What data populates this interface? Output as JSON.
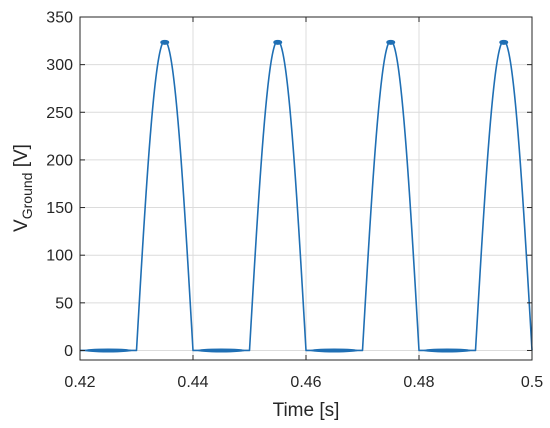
{
  "chart_data": {
    "type": "line",
    "title": "",
    "xlabel": "Time [s]",
    "ylabel_main": "V",
    "ylabel_sub": "Ground",
    "ylabel_unit": " [V]",
    "xlim": [
      0.42,
      0.5
    ],
    "ylim": [
      -10,
      350
    ],
    "xticks": [
      0.42,
      0.44,
      0.46,
      0.48,
      0.5
    ],
    "xtick_labels": [
      "0.42",
      "0.44",
      "0.46",
      "0.48",
      "0.5"
    ],
    "yticks": [
      0,
      50,
      100,
      150,
      200,
      250,
      300,
      350
    ],
    "ytick_labels": [
      "0",
      "50",
      "100",
      "150",
      "200",
      "250",
      "300",
      "350"
    ],
    "grid": true,
    "series": [
      {
        "color": "#1f6fb4",
        "peak": 325,
        "period": 0.02,
        "pulse_starts": [
          0.43,
          0.45,
          0.47,
          0.49
        ],
        "pulse_width": 0.01,
        "x": [
          0.42,
          0.43,
          0.4325,
          0.435,
          0.4375,
          0.44,
          0.45,
          0.4525,
          0.455,
          0.4575,
          0.46,
          0.47,
          0.4725,
          0.475,
          0.4775,
          0.48,
          0.49,
          0.4925,
          0.495,
          0.4975,
          0.5
        ],
        "y": [
          0,
          0,
          230,
          325,
          230,
          0,
          0,
          230,
          325,
          230,
          0,
          0,
          230,
          325,
          230,
          0,
          0,
          230,
          325,
          230,
          0
        ]
      }
    ]
  }
}
